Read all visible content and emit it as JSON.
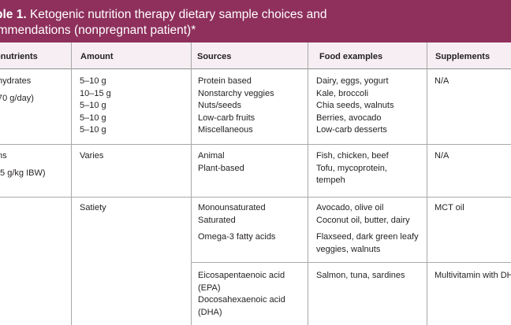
{
  "caption": {
    "label": "ble 1.",
    "line1_text": " Ketogenic nutrition therapy dietary sample choices and",
    "line2_text": "ommendations (nonpregnant patient)*"
  },
  "table": {
    "headers": [
      "onutrients",
      "Amount",
      "Sources",
      "Food examples",
      "Supplements"
    ],
    "rows": [
      {
        "nutrient": [
          "hydrates",
          "70 g/day)"
        ],
        "amount": [
          "5–10 g",
          "10–15 g",
          "5–10 g",
          "5–10 g",
          "5–10 g"
        ],
        "sources": [
          "Protein based",
          "Nonstarchy veggies",
          "Nuts/seeds",
          "Low-carb fruits",
          "Miscellaneous"
        ],
        "foods": [
          "Dairy, eggs, yogurt",
          "Kale, broccoli",
          "Chia seeds, walnuts",
          "Berries, avocado",
          "Low-carb desserts"
        ],
        "supplements": [
          "N/A"
        ]
      },
      {
        "nutrient": [
          "ns",
          ".5 g/kg IBW)"
        ],
        "amount": [
          "Varies"
        ],
        "sources": [
          "Animal",
          "Plant-based"
        ],
        "foods": [
          "Fish, chicken, beef",
          "Tofu, mycoprotein,",
          "tempeh"
        ],
        "supplements": [
          "N/A"
        ]
      },
      {
        "nutrient": [],
        "amount": [
          "Satiety"
        ],
        "sources_a": [
          "Monounsaturated",
          "Saturated"
        ],
        "sources_b": [
          "Omega-3 fatty acids"
        ],
        "foods_a": [
          "Avocado, olive oil",
          "Coconut oil, butter, dairy"
        ],
        "foods_b": [
          "Flaxseed, dark green leafy",
          "veggies, walnuts"
        ],
        "supplements": [
          "MCT oil"
        ]
      },
      {
        "nutrient": [],
        "amount": [],
        "sources": [
          "Eicosapentaenoic acid",
          "(EPA)",
          "Docosahexaenoic acid",
          "(DHA)"
        ],
        "foods": [
          "Salmon, tuna, sardines"
        ],
        "supplements": [
          "Multivitamin with DHA"
        ]
      }
    ]
  }
}
